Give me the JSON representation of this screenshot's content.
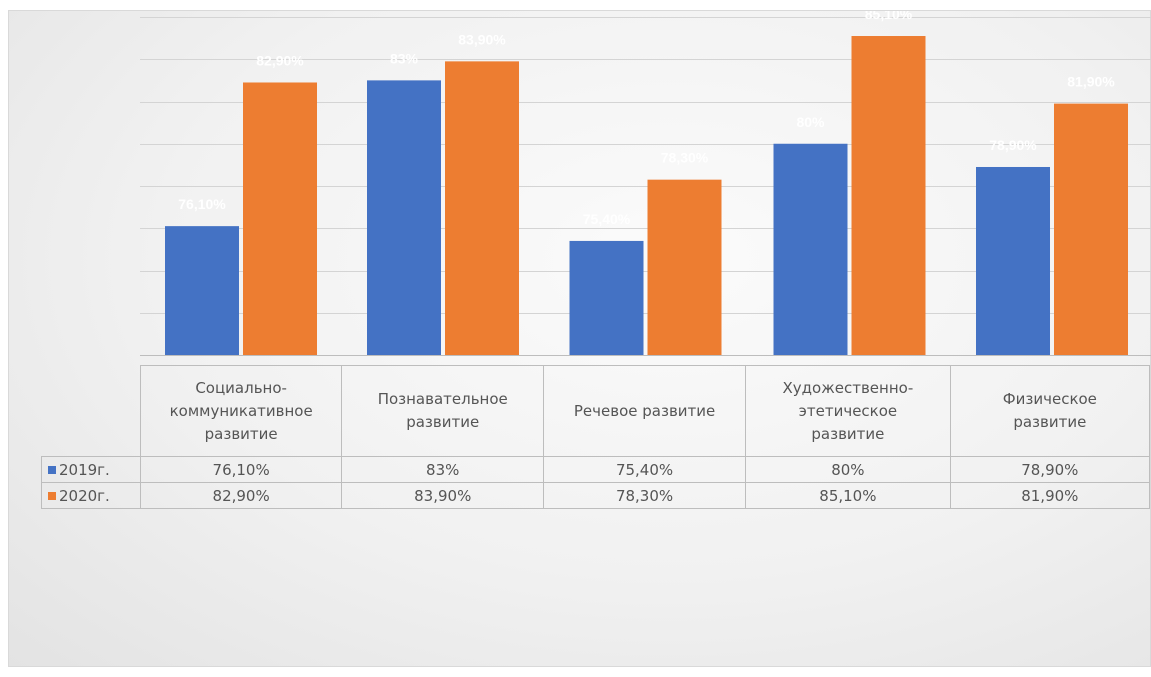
{
  "chart_data": {
    "type": "bar",
    "categories": [
      "Социально-коммуникативное развитие",
      "Познавательное развитие",
      "Речевое развитие",
      "Художественно-этетическое развитие",
      "Физическое развитие"
    ],
    "category_lines": [
      [
        "Социально-",
        "коммуникативное",
        "развитие"
      ],
      [
        "Познавательное",
        "развитие"
      ],
      [
        "Речевое развитие"
      ],
      [
        "Художественно-",
        "этетическое",
        "развитие"
      ],
      [
        "Физическое",
        "развитие"
      ]
    ],
    "series": [
      {
        "name": "2019г.",
        "color": "#4472C4",
        "values": [
          76.1,
          83,
          75.4,
          80,
          78.9
        ],
        "labels": [
          "76,10%",
          "83%",
          "75,40%",
          "80%",
          "78,90%"
        ]
      },
      {
        "name": "2020г.",
        "color": "#ED7D31",
        "values": [
          82.9,
          83.9,
          78.3,
          85.1,
          81.9
        ],
        "labels": [
          "82,90%",
          "83,90%",
          "78,30%",
          "85,10%",
          "81,90%"
        ]
      }
    ],
    "ylim": [
      70,
      86
    ],
    "grid": true,
    "legend": "data-table"
  }
}
